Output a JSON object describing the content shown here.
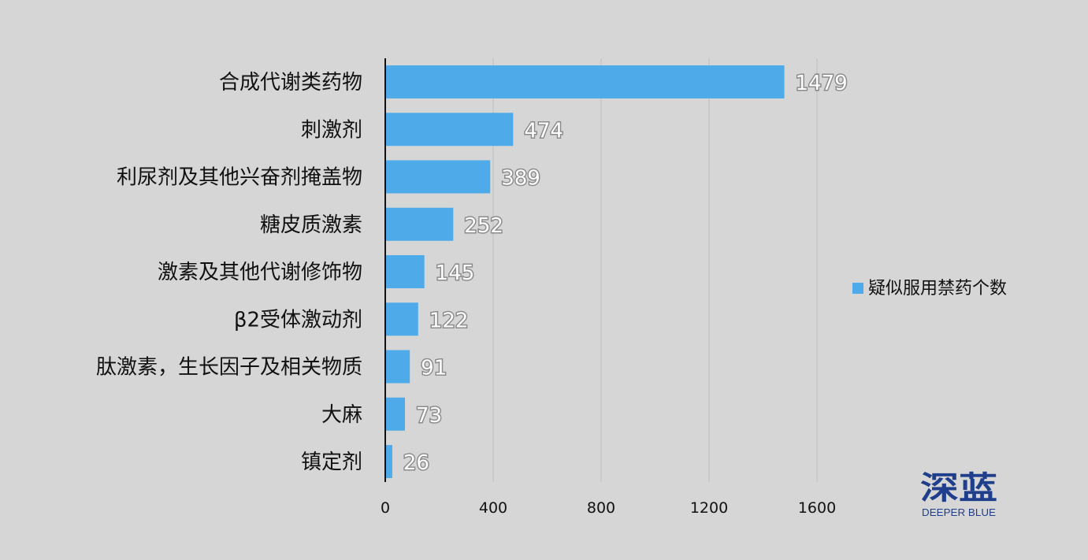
{
  "chart_data": {
    "type": "bar",
    "orientation": "horizontal",
    "categories": [
      "合成代谢类药物",
      "刺激剂",
      "利尿剂及其他兴奋剂掩盖物",
      "糖皮质激素",
      "激素及其他代谢修饰物",
      "β2受体激动剂",
      "肽激素，生长因子及相关物质",
      "大麻",
      "镇定剂"
    ],
    "series": [
      {
        "name": "疑似服用禁药个数",
        "values": [
          1479,
          474,
          389,
          252,
          145,
          122,
          91,
          73,
          26
        ],
        "color": "#4eaae8"
      }
    ],
    "x_ticks": [
      0,
      400,
      800,
      1200,
      1600
    ],
    "xlim": [
      0,
      1600
    ],
    "grid": "vertical",
    "legend_position": "right",
    "data_labels": true
  },
  "brand": {
    "name_cn": "深蓝",
    "name_en": "DEEPER BLUE",
    "color": "#1f3f8c"
  },
  "colors": {
    "background": "#d6d6d6",
    "gridline": "#bdbdbd",
    "axis": "#111111"
  }
}
